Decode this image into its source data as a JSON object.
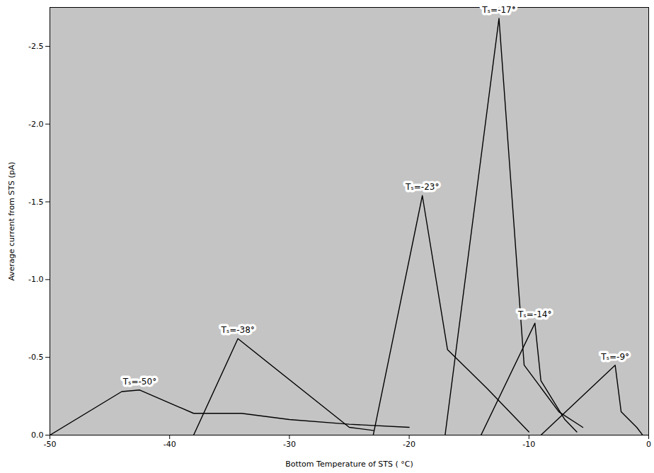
{
  "chart_data": {
    "type": "line",
    "x_label": "Bottom Temperature of STS ( °C)",
    "y_label": "Average current from STS (pA)",
    "xlim": [
      -50,
      0
    ],
    "ylim": [
      0,
      -2.75
    ],
    "xticks": [
      -50,
      -40,
      -30,
      -20,
      -10,
      0
    ],
    "yticks": [
      {
        "value": 0,
        "label": "0.0"
      },
      -0.5,
      {
        "value": -1,
        "label": "-1.0"
      },
      -1.5,
      {
        "value": -2,
        "label": "-2.0"
      },
      -2.5
    ],
    "series": [
      {
        "name": "Tₛ=-50°",
        "color": "#000000",
        "x": [
          -50,
          -44,
          -42.5,
          -38,
          -34,
          -30,
          -25,
          -20
        ],
        "values": [
          0,
          -0.28,
          -0.29,
          -0.14,
          -0.14,
          -0.1,
          -0.07,
          -0.05
        ]
      },
      {
        "name": "Tₛ=-38°",
        "color": "#000000",
        "x": [
          -38,
          -34.3,
          -25,
          -23
        ],
        "values": [
          0,
          -0.62,
          -0.05,
          -0.03
        ]
      },
      {
        "name": "Tₛ=-23°",
        "color": "#000000",
        "x": [
          -23,
          -18.9,
          -16.8,
          -13.5,
          -10
        ],
        "values": [
          0,
          -1.54,
          -0.55,
          -0.3,
          -0.02
        ]
      },
      {
        "name": "Tₛ=-17°",
        "color": "#000000",
        "x": [
          -17,
          -12.5,
          -10.4,
          -7.5,
          -5.5
        ],
        "values": [
          0,
          -2.68,
          -0.45,
          -0.15,
          -0.05
        ]
      },
      {
        "name": "Tₛ=-14°",
        "color": "#000000",
        "x": [
          -14,
          -9.5,
          -9,
          -7,
          -6
        ],
        "values": [
          0,
          -0.72,
          -0.35,
          -0.1,
          -0.02
        ]
      },
      {
        "name": "Tₛ=-9°",
        "color": "#000000",
        "x": [
          -9,
          -2.8,
          -2.3,
          -1,
          -0.5
        ],
        "values": [
          0,
          -0.45,
          -0.15,
          -0.05,
          0
        ]
      }
    ]
  }
}
